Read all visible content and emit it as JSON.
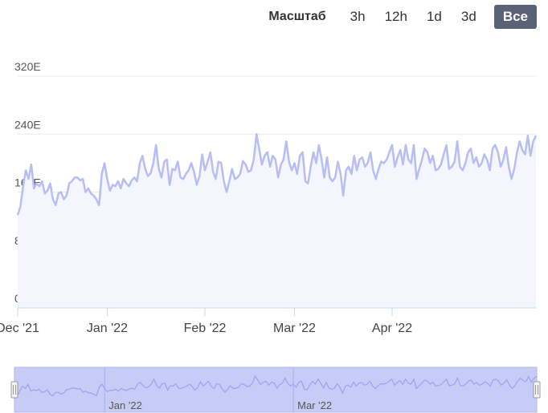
{
  "zoom": {
    "label": "Масштаб",
    "buttons": [
      {
        "label": "3h",
        "active": false
      },
      {
        "label": "12h",
        "active": false
      },
      {
        "label": "1d",
        "active": false
      },
      {
        "label": "3d",
        "active": false
      },
      {
        "label": "Все",
        "active": true
      }
    ]
  },
  "colors": {
    "line": "#b7bdf5",
    "area": "#f4f5fd",
    "navigator": "#c7ccf7",
    "grid": "#e8e8e8"
  },
  "chart_data": {
    "type": "area",
    "title": "",
    "xlabel": "",
    "ylabel": "",
    "x_ticks": [
      "Dec '21",
      "Jan '22",
      "Feb '22",
      "Mar '22",
      "Apr '22"
    ],
    "y_ticks": [
      "0",
      "80E",
      "160E",
      "240E",
      "320E"
    ],
    "ylim": [
      0,
      320
    ],
    "navigator_ticks": [
      "Jan '22",
      "Mar '22"
    ],
    "series": [
      {
        "values": [
          128,
          140,
          168,
          190,
          178,
          198,
          165,
          172,
          168,
          175,
          158,
          162,
          172,
          150,
          142,
          158,
          160,
          150,
          155,
          172,
          175,
          180,
          180,
          176,
          178,
          160,
          165,
          158,
          155,
          150,
          142,
          185,
          200,
          178,
          162,
          170,
          168,
          175,
          165,
          178,
          172,
          168,
          176,
          180,
          175,
          200,
          210,
          192,
          182,
          186,
          200,
          225,
          192,
          180,
          202,
          205,
          170,
          192,
          190,
          202,
          180,
          178,
          185,
          190,
          200,
          188,
          170,
          182,
          212,
          190,
          202,
          215,
          188,
          178,
          202,
          200,
          175,
          160,
          175,
          192,
          178,
          180,
          185,
          203,
          198,
          188,
          190,
          205,
          240,
          220,
          198,
          210,
          215,
          195,
          210,
          205,
          180,
          198,
          205,
          230,
          202,
          190,
          200,
          185,
          210,
          215,
          175,
          172,
          195,
          215,
          200,
          225,
          205,
          180,
          208,
          180,
          175,
          180,
          202,
          185,
          155,
          190,
          195,
          185,
          210,
          190,
          205,
          208,
          195,
          200,
          215,
          190,
          178,
          192,
          202,
          200,
          205,
          215,
          225,
          195,
          208,
          218,
          198,
          225,
          205,
          200,
          225,
          178,
          192,
          205,
          220,
          215,
          200,
          210,
          190,
          192,
          198,
          212,
          225,
          192,
          195,
          202,
          230,
          195,
          190,
          200,
          215,
          220,
          200,
          208,
          195,
          200,
          212,
          205,
          190,
          220,
          225,
          215,
          195,
          205,
          222,
          195,
          178,
          192,
          215,
          230,
          218,
          212,
          238,
          210,
          230,
          238
        ]
      }
    ]
  }
}
